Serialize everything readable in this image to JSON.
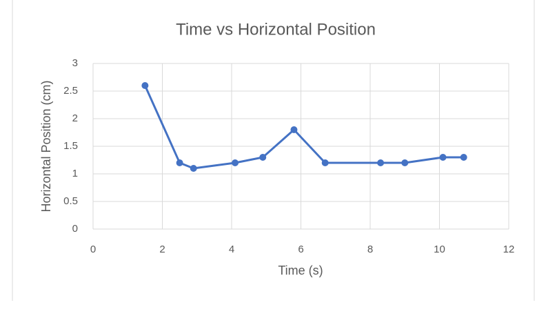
{
  "chart_data": {
    "type": "line",
    "title": "Time vs Horizontal Position",
    "x_label": "Time (s)",
    "y_label": "Horizontal Position (cm)",
    "x": [
      1.5,
      2.5,
      2.9,
      4.1,
      4.9,
      5.8,
      6.7,
      8.3,
      9.0,
      10.1,
      10.7
    ],
    "series": [
      {
        "name": "Horizontal Position",
        "color": "#4472c4",
        "values": [
          2.6,
          1.2,
          1.1,
          1.2,
          1.3,
          1.8,
          1.2,
          1.2,
          1.2,
          1.3,
          1.3
        ]
      }
    ],
    "xlim": [
      0,
      12
    ],
    "xticks": [
      0,
      2,
      4,
      6,
      8,
      10,
      12
    ],
    "ylim": [
      0,
      3
    ],
    "yticks": [
      0,
      0.5,
      1,
      1.5,
      2,
      2.5,
      3
    ],
    "grid": true
  }
}
